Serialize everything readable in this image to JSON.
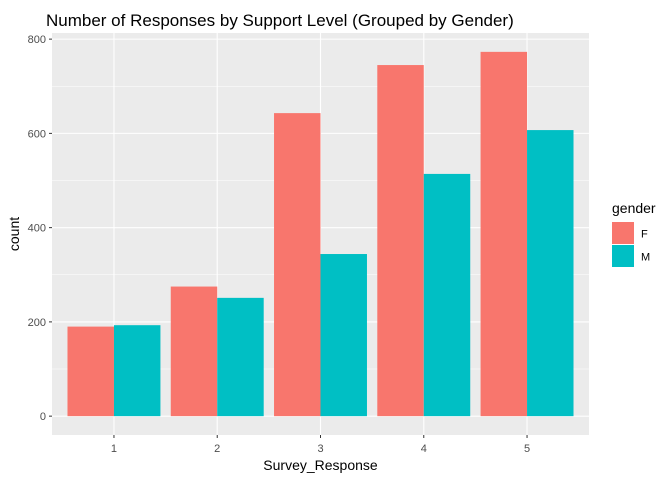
{
  "chart_data": {
    "type": "bar",
    "title": "Number of Responses by Support Level (Grouped by Gender)",
    "xlabel": "Survey_Response",
    "ylabel": "count",
    "categories": [
      "1",
      "2",
      "3",
      "4",
      "5"
    ],
    "series": [
      {
        "name": "F",
        "values": [
          190,
          275,
          643,
          745,
          773
        ],
        "color": "#F8766D"
      },
      {
        "name": "M",
        "values": [
          193,
          251,
          344,
          514,
          607
        ],
        "color": "#00BFC4"
      }
    ],
    "ylim": [
      -40,
      813
    ],
    "yticks": [
      0,
      200,
      400,
      600,
      800
    ],
    "legend": {
      "title": "gender",
      "position": "right"
    },
    "grid": true,
    "panel_background": "#EBEBEB",
    "gridline_color": "#FFFFFF"
  }
}
